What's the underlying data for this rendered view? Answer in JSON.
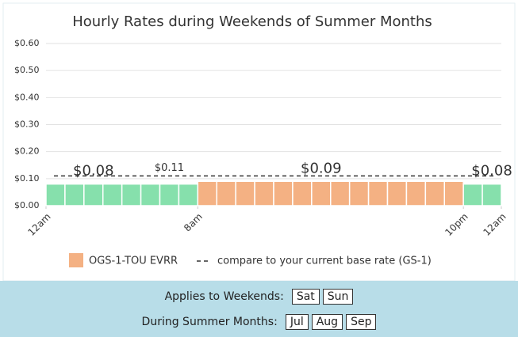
{
  "chart_data": {
    "type": "bar",
    "title": "Hourly Rates during Weekends of Summer Months",
    "xlim": [
      0,
      24
    ],
    "xticks": [
      {
        "value": 0,
        "label": "12am"
      },
      {
        "value": 8,
        "label": "8am"
      },
      {
        "value": 22,
        "label": "10pm"
      },
      {
        "value": 24,
        "label": "12am"
      }
    ],
    "ylim": [
      0,
      0.6
    ],
    "yticks": [
      {
        "value": 0,
        "label": "$0.00"
      },
      {
        "value": 0.1,
        "label": "$0.10"
      },
      {
        "value": 0.2,
        "label": "$0.20"
      },
      {
        "value": 0.3,
        "label": "$0.30"
      },
      {
        "value": 0.4,
        "label": "$0.40"
      },
      {
        "value": 0.5,
        "label": "$0.50"
      },
      {
        "value": 0.6,
        "label": "$0.60"
      }
    ],
    "grid": true,
    "series": [
      {
        "name": "OGS-1-TOU EVRR",
        "color": "#f4b183",
        "values": [
          0.08,
          0.08,
          0.08,
          0.08,
          0.08,
          0.08,
          0.08,
          0.08,
          0.09,
          0.09,
          0.09,
          0.09,
          0.09,
          0.09,
          0.09,
          0.09,
          0.09,
          0.09,
          0.09,
          0.09,
          0.09,
          0.09,
          0.08,
          0.08
        ],
        "colors": [
          "#86e0ac",
          "#86e0ac",
          "#86e0ac",
          "#86e0ac",
          "#86e0ac",
          "#86e0ac",
          "#86e0ac",
          "#86e0ac",
          "#f4b183",
          "#f4b183",
          "#f4b183",
          "#f4b183",
          "#f4b183",
          "#f4b183",
          "#f4b183",
          "#f4b183",
          "#f4b183",
          "#f4b183",
          "#f4b183",
          "#f4b183",
          "#f4b183",
          "#f4b183",
          "#86e0ac",
          "#86e0ac"
        ],
        "value_labels": [
          null,
          null,
          "$0.08",
          null,
          null,
          null,
          null,
          null,
          null,
          null,
          null,
          null,
          null,
          null,
          "$0.09",
          null,
          null,
          null,
          null,
          null,
          null,
          null,
          null,
          "$0.08"
        ]
      }
    ],
    "reference": {
      "name": "compare to your current base rate (GS-1)",
      "value": 0.11,
      "value_label": "$0.11"
    }
  },
  "filters": [
    {
      "label": "Applies to Weekends:",
      "options": [
        "Sat",
        "Sun"
      ]
    },
    {
      "label": "During Summer Months:",
      "options": [
        "Jul",
        "Aug",
        "Sep"
      ]
    }
  ]
}
